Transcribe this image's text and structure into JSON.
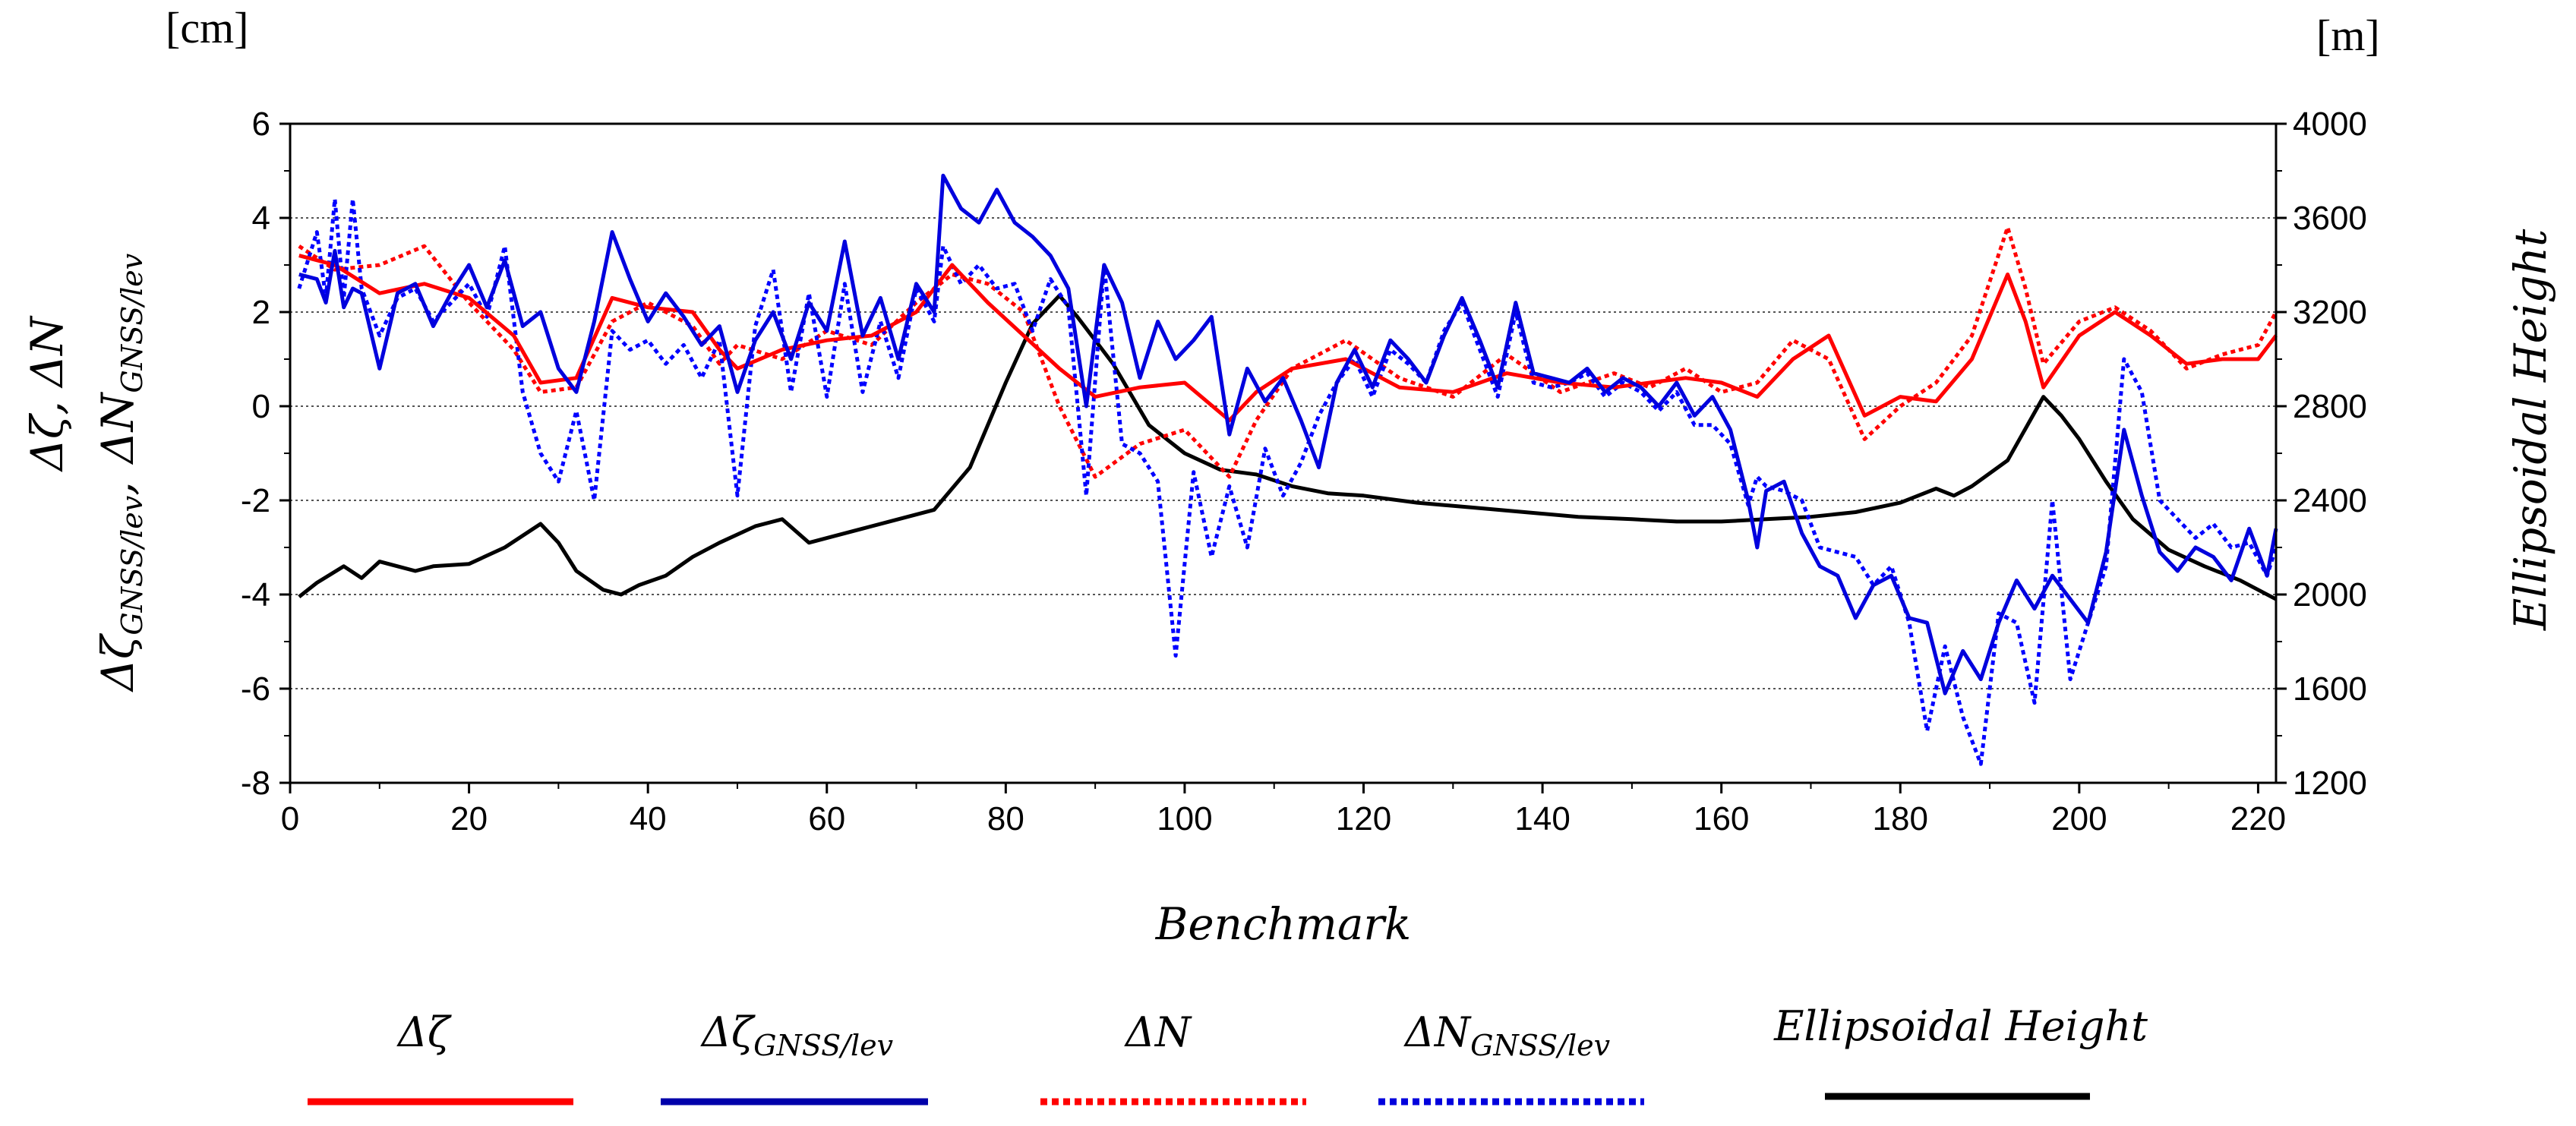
{
  "chart_data": {
    "type": "line",
    "xlabel": "Benchmark",
    "x_ticks": [
      "0",
      "20",
      "40",
      "60",
      "80",
      "100",
      "120",
      "140",
      "160",
      "180",
      "200",
      "220"
    ],
    "xlim": [
      0,
      222
    ],
    "left_axis": {
      "unit": "[cm]",
      "label_line1": "Δζ, ΔN",
      "label_line2_a": "Δζ",
      "label_line2_a_sub": "GNSS/lev",
      "label_line2_sep": ",",
      "label_line2_b": "ΔN",
      "label_line2_b_sub": "GNSS/lev",
      "ticks": [
        "6",
        "4",
        "2",
        "0",
        "-2",
        "-4",
        "-6",
        "-8"
      ],
      "ylim": [
        -8,
        6
      ]
    },
    "right_axis": {
      "unit": "[m]",
      "label": "Ellipsoidal Height",
      "ticks": [
        "4000",
        "3600",
        "3200",
        "2800",
        "2400",
        "2000",
        "1600",
        "1200"
      ],
      "ylim": [
        1200,
        4000
      ]
    },
    "legend": [
      {
        "main": "Δζ",
        "sub": "",
        "color": "#ff0000",
        "dash": "solid"
      },
      {
        "main": "Δζ",
        "sub": "GNSS/lev",
        "color": "#0000aa",
        "dash": "solid"
      },
      {
        "main": "ΔN",
        "sub": "",
        "color": "#ff0000",
        "dash": "dotted"
      },
      {
        "main": "ΔN",
        "sub": "GNSS/lev",
        "color": "#0000dd",
        "dash": "dotted"
      },
      {
        "main": "Ellipsoidal Height",
        "sub": "",
        "color": "#000000",
        "dash": "solid"
      }
    ],
    "series": [
      {
        "name": "Δζ",
        "axis": "left",
        "color": "#ff0000",
        "dash": "solid",
        "x": [
          1,
          5,
          10,
          15,
          20,
          25,
          28,
          32,
          36,
          40,
          45,
          48,
          50,
          55,
          60,
          65,
          70,
          74,
          78,
          82,
          86,
          90,
          95,
          100,
          105,
          108,
          112,
          118,
          124,
          130,
          136,
          142,
          148,
          152,
          156,
          160,
          164,
          168,
          172,
          176,
          180,
          184,
          188,
          192,
          194,
          196,
          200,
          204,
          208,
          212,
          216,
          220,
          222
        ],
        "y": [
          3.2,
          3.0,
          2.4,
          2.6,
          2.3,
          1.5,
          0.5,
          0.6,
          2.3,
          2.1,
          2.0,
          1.2,
          0.8,
          1.2,
          1.4,
          1.5,
          2.0,
          3.0,
          2.2,
          1.5,
          0.8,
          0.2,
          0.4,
          0.5,
          -0.3,
          0.3,
          0.8,
          1.0,
          0.4,
          0.3,
          0.7,
          0.5,
          0.4,
          0.5,
          0.6,
          0.5,
          0.2,
          1.0,
          1.5,
          -0.2,
          0.2,
          0.1,
          1.0,
          2.8,
          1.8,
          0.4,
          1.5,
          2.0,
          1.5,
          0.9,
          1.0,
          1.0,
          1.5
        ]
      },
      {
        "name": "ΔN",
        "axis": "left",
        "color": "#ff0000",
        "dash": "dotted",
        "x": [
          1,
          5,
          10,
          15,
          20,
          25,
          28,
          32,
          36,
          40,
          45,
          48,
          50,
          55,
          60,
          65,
          70,
          74,
          78,
          82,
          86,
          90,
          95,
          100,
          105,
          108,
          112,
          118,
          124,
          130,
          136,
          142,
          148,
          152,
          156,
          160,
          164,
          168,
          172,
          176,
          180,
          184,
          188,
          192,
          194,
          196,
          200,
          204,
          208,
          212,
          216,
          220,
          222
        ],
        "y": [
          3.4,
          2.9,
          3.0,
          3.4,
          2.2,
          1.2,
          0.3,
          0.4,
          1.8,
          2.2,
          1.7,
          0.9,
          1.3,
          1.0,
          1.6,
          1.3,
          2.2,
          2.8,
          2.6,
          2.0,
          0.0,
          -1.5,
          -0.8,
          -0.5,
          -1.5,
          -0.3,
          0.8,
          1.4,
          0.6,
          0.2,
          1.1,
          0.3,
          0.7,
          0.4,
          0.8,
          0.3,
          0.5,
          1.4,
          1.0,
          -0.7,
          0.0,
          0.5,
          1.5,
          3.8,
          2.5,
          0.9,
          1.8,
          2.1,
          1.6,
          0.8,
          1.1,
          1.3,
          2.0
        ]
      },
      {
        "name": "ΔζGNSS/lev",
        "axis": "left",
        "color": "#0000dd",
        "dash": "solid",
        "x": [
          1,
          3,
          4,
          5,
          6,
          7,
          8,
          10,
          12,
          14,
          16,
          18,
          20,
          22,
          24,
          26,
          28,
          30,
          32,
          34,
          36,
          38,
          40,
          42,
          44,
          46,
          48,
          50,
          52,
          54,
          56,
          58,
          60,
          62,
          64,
          66,
          68,
          70,
          72,
          73,
          75,
          77,
          79,
          81,
          83,
          85,
          87,
          89,
          91,
          93,
          95,
          97,
          99,
          101,
          103,
          105,
          107,
          109,
          111,
          113,
          115,
          117,
          119,
          121,
          123,
          125,
          127,
          129,
          131,
          133,
          135,
          137,
          139,
          141,
          143,
          145,
          147,
          149,
          151,
          153,
          155,
          157,
          159,
          161,
          163,
          164,
          165,
          167,
          169,
          171,
          173,
          175,
          177,
          179,
          181,
          183,
          185,
          187,
          189,
          191,
          193,
          195,
          197,
          199,
          201,
          203,
          205,
          207,
          209,
          211,
          213,
          215,
          217,
          219,
          221,
          222
        ],
        "y": [
          2.8,
          2.7,
          2.2,
          3.3,
          2.1,
          2.5,
          2.4,
          0.8,
          2.4,
          2.6,
          1.7,
          2.4,
          3.0,
          2.1,
          3.1,
          1.7,
          2.0,
          0.8,
          0.3,
          1.8,
          3.7,
          2.7,
          1.8,
          2.4,
          1.9,
          1.3,
          1.7,
          0.3,
          1.4,
          2.0,
          1.0,
          2.2,
          1.6,
          3.5,
          1.5,
          2.3,
          1.0,
          2.6,
          2.0,
          4.9,
          4.2,
          3.9,
          4.6,
          3.9,
          3.6,
          3.2,
          2.5,
          0.0,
          3.0,
          2.2,
          0.6,
          1.8,
          1.0,
          1.4,
          1.9,
          -0.6,
          0.8,
          0.1,
          0.6,
          -0.3,
          -1.3,
          0.5,
          1.2,
          0.4,
          1.4,
          1.0,
          0.5,
          1.5,
          2.3,
          1.4,
          0.4,
          2.2,
          0.7,
          0.6,
          0.5,
          0.8,
          0.3,
          0.6,
          0.4,
          0.0,
          0.5,
          -0.2,
          0.2,
          -0.5,
          -2.0,
          -3.0,
          -1.8,
          -1.6,
          -2.7,
          -3.4,
          -3.6,
          -4.5,
          -3.8,
          -3.6,
          -4.5,
          -4.6,
          -6.1,
          -5.2,
          -5.8,
          -4.6,
          -3.7,
          -4.3,
          -3.6,
          -4.1,
          -4.6,
          -3.1,
          -0.5,
          -1.9,
          -3.1,
          -3.5,
          -3.0,
          -3.2,
          -3.7,
          -2.6,
          -3.6,
          -2.6
        ]
      },
      {
        "name": "ΔNGNSS/lev",
        "axis": "left",
        "color": "#0000ff",
        "dash": "dotted",
        "x": [
          1,
          3,
          4,
          5,
          6,
          7,
          8,
          10,
          12,
          14,
          16,
          18,
          20,
          22,
          24,
          26,
          28,
          30,
          32,
          34,
          36,
          38,
          40,
          42,
          44,
          46,
          48,
          50,
          52,
          54,
          56,
          58,
          60,
          62,
          64,
          66,
          68,
          70,
          72,
          73,
          75,
          77,
          79,
          81,
          83,
          85,
          87,
          89,
          91,
          93,
          95,
          97,
          99,
          101,
          103,
          105,
          107,
          109,
          111,
          113,
          115,
          117,
          119,
          121,
          123,
          125,
          127,
          129,
          131,
          133,
          135,
          137,
          139,
          141,
          143,
          145,
          147,
          149,
          151,
          153,
          155,
          157,
          159,
          161,
          163,
          164,
          165,
          167,
          169,
          171,
          173,
          175,
          177,
          179,
          181,
          183,
          185,
          187,
          189,
          191,
          193,
          195,
          197,
          199,
          201,
          203,
          205,
          207,
          209,
          211,
          213,
          215,
          217,
          219,
          221,
          222
        ],
        "y": [
          2.5,
          3.7,
          2.3,
          4.4,
          2.3,
          4.4,
          2.5,
          1.5,
          2.3,
          2.5,
          1.8,
          2.2,
          2.6,
          1.9,
          3.4,
          0.3,
          -1.0,
          -1.6,
          -0.1,
          -2.0,
          1.6,
          1.2,
          1.4,
          0.9,
          1.3,
          0.6,
          1.4,
          -1.9,
          1.7,
          2.9,
          0.3,
          2.4,
          0.2,
          2.6,
          0.3,
          1.8,
          0.6,
          2.5,
          1.8,
          3.4,
          2.6,
          3.0,
          2.5,
          2.6,
          1.6,
          2.7,
          2.1,
          -1.9,
          3.0,
          -0.8,
          -1.0,
          -1.6,
          -5.3,
          -1.4,
          -3.2,
          -1.7,
          -3.0,
          -0.9,
          -1.9,
          -1.2,
          -0.2,
          0.5,
          1.0,
          0.2,
          1.2,
          0.9,
          0.5,
          1.6,
          2.2,
          1.2,
          0.2,
          2.0,
          0.5,
          0.4,
          0.5,
          0.7,
          0.2,
          0.5,
          0.3,
          -0.1,
          0.3,
          -0.4,
          -0.4,
          -0.8,
          -2.1,
          -1.5,
          -1.7,
          -1.8,
          -2.0,
          -3.0,
          -3.1,
          -3.2,
          -3.8,
          -3.4,
          -4.6,
          -6.9,
          -5.1,
          -6.6,
          -7.6,
          -4.4,
          -4.6,
          -6.3,
          -2.0,
          -5.8,
          -4.6,
          -3.4,
          1.0,
          0.3,
          -2.0,
          -2.4,
          -2.8,
          -2.5,
          -3.0,
          -2.9,
          -3.6,
          -3.0
        ]
      },
      {
        "name": "Ellipsoidal Height",
        "axis": "right",
        "color": "#000000",
        "dash": "solid",
        "x": [
          1,
          3,
          6,
          8,
          10,
          12,
          14,
          16,
          20,
          24,
          28,
          30,
          32,
          35,
          37,
          39,
          42,
          45,
          48,
          52,
          55,
          58,
          60,
          64,
          68,
          72,
          76,
          80,
          83,
          86,
          88,
          92,
          96,
          100,
          104,
          108,
          112,
          116,
          120,
          126,
          132,
          138,
          144,
          150,
          155,
          160,
          165,
          170,
          175,
          180,
          184,
          186,
          188,
          192,
          196,
          198,
          200,
          203,
          206,
          210,
          214,
          218,
          222
        ],
        "y": [
          1990,
          2050,
          2120,
          2070,
          2140,
          2120,
          2100,
          2120,
          2130,
          2200,
          2300,
          2220,
          2100,
          2020,
          2000,
          2040,
          2080,
          2160,
          2220,
          2290,
          2320,
          2220,
          2240,
          2280,
          2320,
          2360,
          2540,
          2900,
          3150,
          3270,
          3180,
          2980,
          2720,
          2600,
          2530,
          2510,
          2460,
          2430,
          2420,
          2390,
          2370,
          2350,
          2330,
          2320,
          2310,
          2310,
          2320,
          2330,
          2350,
          2390,
          2450,
          2420,
          2460,
          2570,
          2840,
          2760,
          2660,
          2480,
          2320,
          2190,
          2120,
          2060,
          1980
        ]
      }
    ]
  }
}
